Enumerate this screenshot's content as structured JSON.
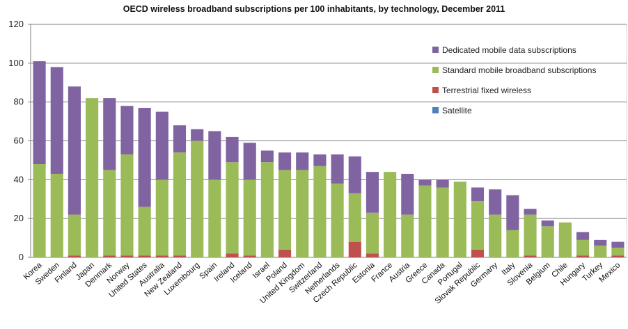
{
  "chart_data": {
    "type": "bar",
    "stacked": true,
    "title": "OECD wireless broadband subscriptions per 100 inhabitants, by technology, December 2011",
    "xlabel": "",
    "ylabel": "",
    "ylim": [
      0,
      120
    ],
    "yticks": [
      0,
      20,
      40,
      60,
      80,
      100,
      120
    ],
    "grid": true,
    "legend_position": "top-right",
    "categories": [
      "Korea",
      "Sweden",
      "Finland",
      "Japan",
      "Denmark",
      "Norway",
      "United States",
      "Australia",
      "New Zealand",
      "Luxembourg",
      "Spain",
      "Ireland",
      "Iceland",
      "Israel",
      "Poland",
      "United Kingdom",
      "Switzerland",
      "Netherlands",
      "Czech Republic",
      "Estonia",
      "France",
      "Austria",
      "Greece",
      "Canada",
      "Portugal",
      "Slovak Republic",
      "Germany",
      "Italy",
      "Slovenia",
      "Belgium",
      "Chile",
      "Hungary",
      "Turkey",
      "Mexico"
    ],
    "legend_order": [
      3,
      2,
      1,
      0
    ],
    "series": [
      {
        "name": "Satellite",
        "color": "#4f81bd",
        "values": [
          0,
          0,
          0,
          0,
          0,
          0,
          0,
          0,
          0,
          0,
          0,
          0,
          0,
          0,
          0,
          0,
          0,
          0,
          0,
          0,
          0,
          0,
          0,
          0,
          0,
          0,
          0,
          0,
          0,
          0,
          0,
          0,
          0,
          0
        ]
      },
      {
        "name": "Terrestrial fixed wireless",
        "color": "#c0504d",
        "values": [
          0,
          0,
          1,
          0,
          1,
          1,
          1,
          1,
          1,
          0,
          0,
          2,
          1,
          0,
          4,
          0,
          0,
          0,
          8,
          2,
          0,
          0,
          0,
          0,
          0,
          4,
          0,
          0,
          1,
          0,
          0,
          1,
          0,
          1
        ]
      },
      {
        "name": "Standard mobile broadband subscriptions",
        "color": "#9bbb59",
        "values": [
          48,
          43,
          21,
          82,
          44,
          52,
          25,
          39,
          53,
          60,
          40,
          47,
          39,
          49,
          41,
          45,
          47,
          38,
          25,
          21,
          44,
          22,
          37,
          36,
          39,
          25,
          22,
          14,
          21,
          16,
          18,
          8,
          6,
          4
        ]
      },
      {
        "name": "Dedicated mobile data subscriptions",
        "color": "#8064a2",
        "values": [
          53,
          55,
          66,
          0,
          37,
          25,
          51,
          35,
          14,
          6,
          25,
          13,
          19,
          6,
          9,
          9,
          6,
          15,
          19,
          21,
          0,
          21,
          3,
          4,
          0,
          7,
          13,
          18,
          3,
          3,
          0,
          4,
          3,
          3
        ]
      }
    ]
  }
}
